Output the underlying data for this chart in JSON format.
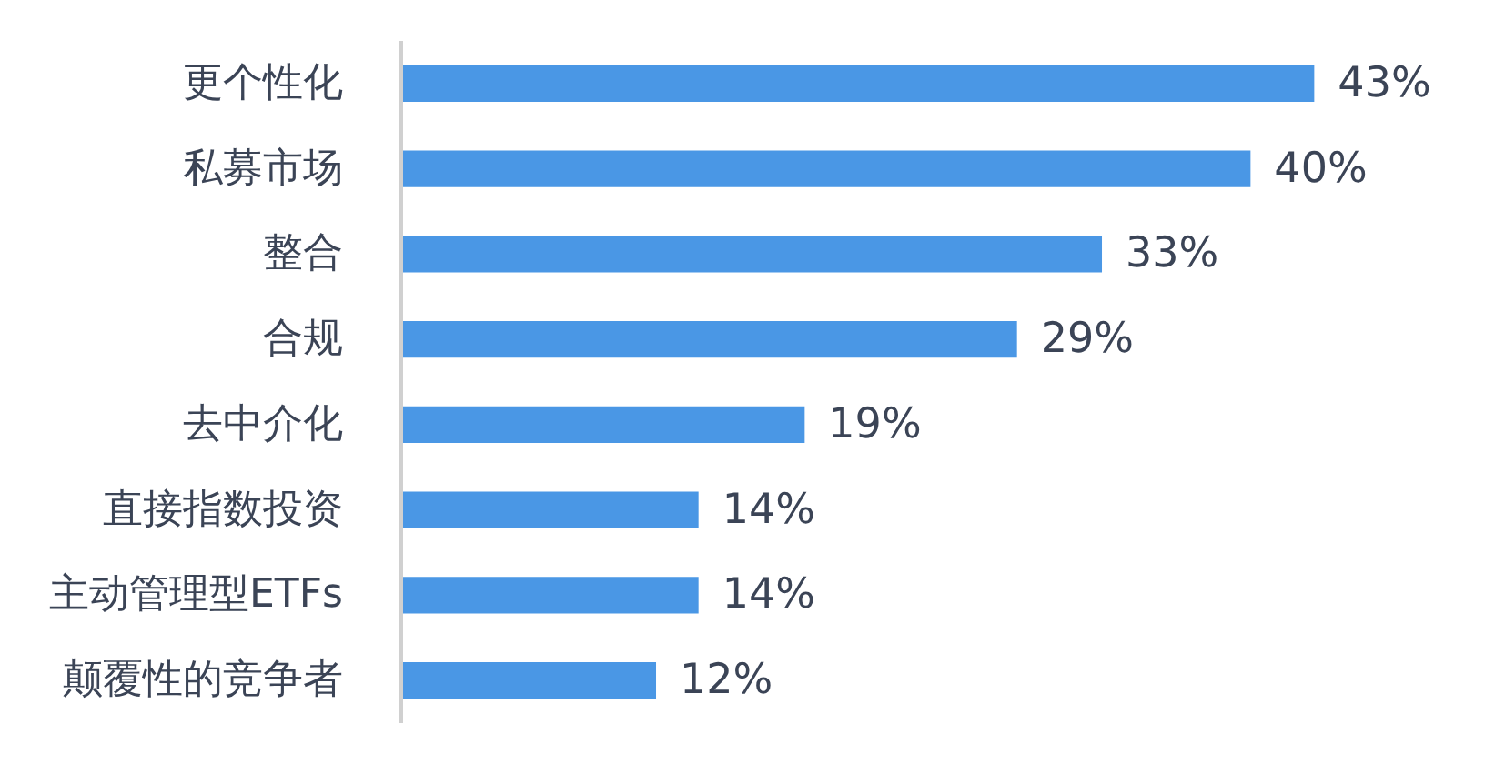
{
  "chart_data": {
    "type": "bar",
    "orientation": "horizontal",
    "categories": [
      "更个性化",
      "私募市场",
      "整合",
      "合规",
      "去中介化",
      "直接指数投资",
      "主动管理型ETFs",
      "颠覆性的竞争者"
    ],
    "values": [
      43,
      40,
      33,
      29,
      19,
      14,
      14,
      12
    ],
    "color": "#4a97e5",
    "value_labels": [
      "43%",
      "40%",
      "33%",
      "29%",
      "19%",
      "14%",
      "14%",
      "12%"
    ]
  }
}
